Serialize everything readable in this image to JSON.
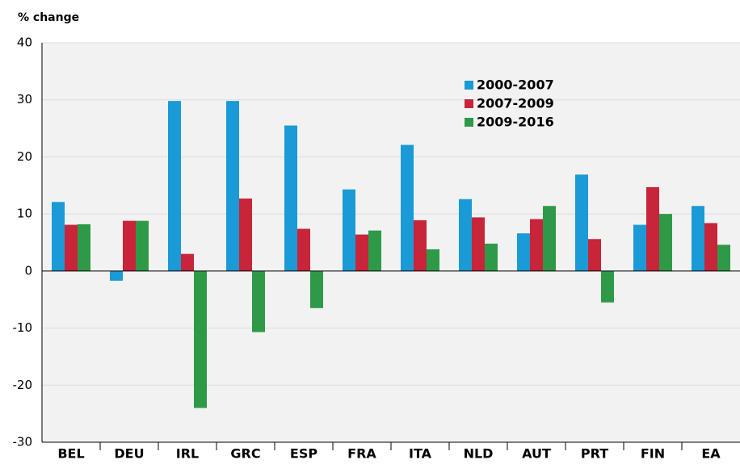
{
  "chart_data": {
    "type": "bar",
    "ylabel": "% change",
    "categories": [
      "BEL",
      "DEU",
      "IRL",
      "GRC",
      "ESP",
      "FRA",
      "ITA",
      "NLD",
      "AUT",
      "PRT",
      "FIN",
      "EA"
    ],
    "series": [
      {
        "name": "2000-2007",
        "color": "#1a9ad6",
        "values": [
          12.1,
          -1.7,
          29.8,
          29.8,
          25.5,
          14.3,
          22.1,
          12.6,
          6.6,
          16.9,
          8.1,
          11.4
        ]
      },
      {
        "name": "2007-2009",
        "color": "#c8243a",
        "values": [
          8.1,
          8.8,
          3.0,
          12.7,
          7.4,
          6.4,
          8.9,
          9.4,
          9.1,
          5.6,
          14.7,
          8.4
        ]
      },
      {
        "name": "2009-2016",
        "color": "#2e9a47",
        "values": [
          8.2,
          8.8,
          -24.0,
          -10.7,
          -6.5,
          7.1,
          3.8,
          4.8,
          11.4,
          -5.5,
          10.0,
          4.6
        ]
      }
    ],
    "ylim": [
      -30,
      40
    ],
    "yticks": [
      -30,
      -20,
      -10,
      0,
      10,
      20,
      30,
      40
    ],
    "grid": true,
    "legend": "top-center"
  }
}
